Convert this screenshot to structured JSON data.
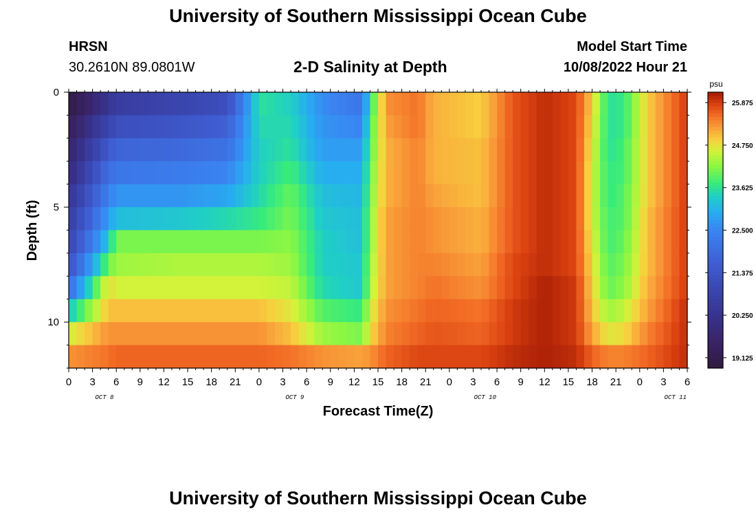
{
  "header": {
    "title": "University of Southern Mississippi Ocean Cube",
    "station": "HRSN",
    "coordinates": "30.2610N  89.0801W",
    "subtitle": "2-D Salinity at Depth",
    "model_label": "Model Start Time",
    "model_time": "10/08/2022 Hour 21"
  },
  "footer": {
    "title": "University of Southern Mississippi Ocean Cube"
  },
  "chart_data": {
    "type": "heatmap",
    "title": "2-D Salinity at Depth",
    "xlabel": "Forecast Time(Z)",
    "ylabel": "Depth (ft)",
    "x_tick_labels": [
      "0",
      "3",
      "6",
      "9",
      "12",
      "15",
      "18",
      "21",
      "0",
      "3",
      "6",
      "9",
      "12",
      "15",
      "18",
      "21",
      "0",
      "3",
      "6",
      "9",
      "12",
      "15",
      "18",
      "21",
      "0",
      "3",
      "6"
    ],
    "x_day_labels": [
      {
        "label": "OCT 8",
        "at_hour": 4.5
      },
      {
        "label": "OCT 9",
        "at_hour": 28.5
      },
      {
        "label": "OCT 10",
        "at_hour": 52.5
      },
      {
        "label": "OCT 11",
        "at_hour": 76.5
      }
    ],
    "xlim_hours": [
      0,
      78
    ],
    "x_step_hours": 1,
    "ylim_ft": [
      0,
      12
    ],
    "y_tick_labels": [
      "0",
      "5",
      "10"
    ],
    "y_major_ticks": [
      0,
      5,
      10
    ],
    "depth_layers_ft": [
      0,
      1,
      2,
      3,
      4,
      5,
      6,
      7,
      8,
      9,
      10,
      11,
      12
    ],
    "colorbar": {
      "unit": "psu",
      "min": 18.85,
      "max": 26.15,
      "tick_values": [
        19.125,
        20.25,
        21.375,
        22.5,
        23.625,
        24.75,
        25.875
      ],
      "tick_labels": [
        "19.125",
        "20.250",
        "21.375",
        "22.500",
        "23.625",
        "24.750",
        "25.875"
      ]
    },
    "salinity_profile_keyframes": {
      "comment": "salinity (psu) at each depth layer (12 layers, surface to bottom) keyed by forecast hour; intermediate hours interpolated",
      "keyframes": [
        {
          "hour": 0,
          "values": [
            19.0,
            19.3,
            19.6,
            19.9,
            20.3,
            20.6,
            20.9,
            21.3,
            22.0,
            23.3,
            24.6,
            25.3
          ]
        },
        {
          "hour": 5,
          "values": [
            20.3,
            20.9,
            21.5,
            22.0,
            22.4,
            22.8,
            23.3,
            24.0,
            24.8,
            25.0,
            25.3,
            25.5
          ]
        },
        {
          "hour": 6,
          "values": [
            20.6,
            21.2,
            21.8,
            22.2,
            22.7,
            23.2,
            24.1,
            24.3,
            24.6,
            25.0,
            25.3,
            25.6
          ]
        },
        {
          "hour": 14,
          "values": [
            20.9,
            21.4,
            21.9,
            22.3,
            22.7,
            23.3,
            24.1,
            24.4,
            24.6,
            25.0,
            25.3,
            25.6
          ]
        },
        {
          "hour": 20,
          "values": [
            21.2,
            21.7,
            22.1,
            22.5,
            22.9,
            23.5,
            24.1,
            24.4,
            24.6,
            25.0,
            25.3,
            25.6
          ]
        },
        {
          "hour": 24,
          "values": [
            23.6,
            23.5,
            23.4,
            23.4,
            23.5,
            23.7,
            24.1,
            24.4,
            24.6,
            25.0,
            25.3,
            25.6
          ]
        },
        {
          "hour": 28,
          "values": [
            23.4,
            23.5,
            23.6,
            23.8,
            24.0,
            24.1,
            24.2,
            24.3,
            24.5,
            24.7,
            25.0,
            25.5
          ]
        },
        {
          "hour": 32,
          "values": [
            22.6,
            22.7,
            22.8,
            23.0,
            23.2,
            23.3,
            23.4,
            23.4,
            23.5,
            23.9,
            24.3,
            25.3
          ]
        },
        {
          "hour": 37,
          "values": [
            22.2,
            22.5,
            22.8,
            23.0,
            23.1,
            23.2,
            23.2,
            23.3,
            23.3,
            23.7,
            24.1,
            25.2
          ]
        },
        {
          "hour": 38,
          "values": [
            23.6,
            23.8,
            23.9,
            24.0,
            24.1,
            24.2,
            24.2,
            24.3,
            24.4,
            24.6,
            24.8,
            25.3
          ]
        },
        {
          "hour": 40,
          "values": [
            25.3,
            25.2,
            25.1,
            25.1,
            25.1,
            25.2,
            25.2,
            25.2,
            25.2,
            25.3,
            25.4,
            25.6
          ]
        },
        {
          "hour": 44,
          "values": [
            25.5,
            25.5,
            25.4,
            25.4,
            25.4,
            25.4,
            25.4,
            25.4,
            25.4,
            25.5,
            25.6,
            25.8
          ]
        },
        {
          "hour": 46,
          "values": [
            25.1,
            25.1,
            25.1,
            25.1,
            25.2,
            25.3,
            25.3,
            25.4,
            25.5,
            25.6,
            25.7,
            25.8
          ]
        },
        {
          "hour": 52,
          "values": [
            24.9,
            24.9,
            25.0,
            25.0,
            25.0,
            25.1,
            25.1,
            25.2,
            25.3,
            25.5,
            25.6,
            25.8
          ]
        },
        {
          "hour": 56,
          "values": [
            25.7,
            25.7,
            25.7,
            25.7,
            25.7,
            25.7,
            25.7,
            25.8,
            25.8,
            25.9,
            25.9,
            26.0
          ]
        },
        {
          "hour": 60,
          "values": [
            26.0,
            26.0,
            26.0,
            26.0,
            26.0,
            26.0,
            26.0,
            26.0,
            26.1,
            26.1,
            26.1,
            26.1
          ]
        },
        {
          "hour": 64,
          "values": [
            25.8,
            25.8,
            25.8,
            25.8,
            25.8,
            25.8,
            25.8,
            25.8,
            25.9,
            25.9,
            25.9,
            26.0
          ]
        },
        {
          "hour": 66,
          "values": [
            24.9,
            24.8,
            24.7,
            24.6,
            24.6,
            24.6,
            24.7,
            24.8,
            24.9,
            25.0,
            25.2,
            25.6
          ]
        },
        {
          "hour": 68,
          "values": [
            23.6,
            23.6,
            23.6,
            23.7,
            23.7,
            23.8,
            23.8,
            23.9,
            24.0,
            24.3,
            24.7,
            25.4
          ]
        },
        {
          "hour": 70,
          "values": [
            23.7,
            23.7,
            23.8,
            23.8,
            23.9,
            23.9,
            24.0,
            24.1,
            24.2,
            24.5,
            24.8,
            25.4
          ]
        },
        {
          "hour": 73,
          "values": [
            24.9,
            24.9,
            24.9,
            24.9,
            24.9,
            25.0,
            25.0,
            25.0,
            25.1,
            25.2,
            25.4,
            25.6
          ]
        },
        {
          "hour": 78,
          "values": [
            25.9,
            25.9,
            25.9,
            25.9,
            25.9,
            25.9,
            25.9,
            25.9,
            25.9,
            26.0,
            26.0,
            26.0
          ]
        }
      ]
    },
    "colormap_stops": [
      {
        "v": 18.85,
        "color": "#301b3e"
      },
      {
        "v": 19.6,
        "color": "#3a2468"
      },
      {
        "v": 20.25,
        "color": "#38338f"
      },
      {
        "v": 21.0,
        "color": "#3a48b3"
      },
      {
        "v": 21.6,
        "color": "#3f5cd0"
      },
      {
        "v": 22.5,
        "color": "#3a84f2"
      },
      {
        "v": 23.0,
        "color": "#27aef0"
      },
      {
        "v": 23.4,
        "color": "#20cfc5"
      },
      {
        "v": 23.75,
        "color": "#38ec7a"
      },
      {
        "v": 24.2,
        "color": "#8cf742"
      },
      {
        "v": 24.6,
        "color": "#d3f23a"
      },
      {
        "v": 24.9,
        "color": "#f8cf3e"
      },
      {
        "v": 25.2,
        "color": "#f9a23b"
      },
      {
        "v": 25.55,
        "color": "#f26b25"
      },
      {
        "v": 25.85,
        "color": "#d9400f"
      },
      {
        "v": 26.15,
        "color": "#a51c05"
      }
    ]
  }
}
